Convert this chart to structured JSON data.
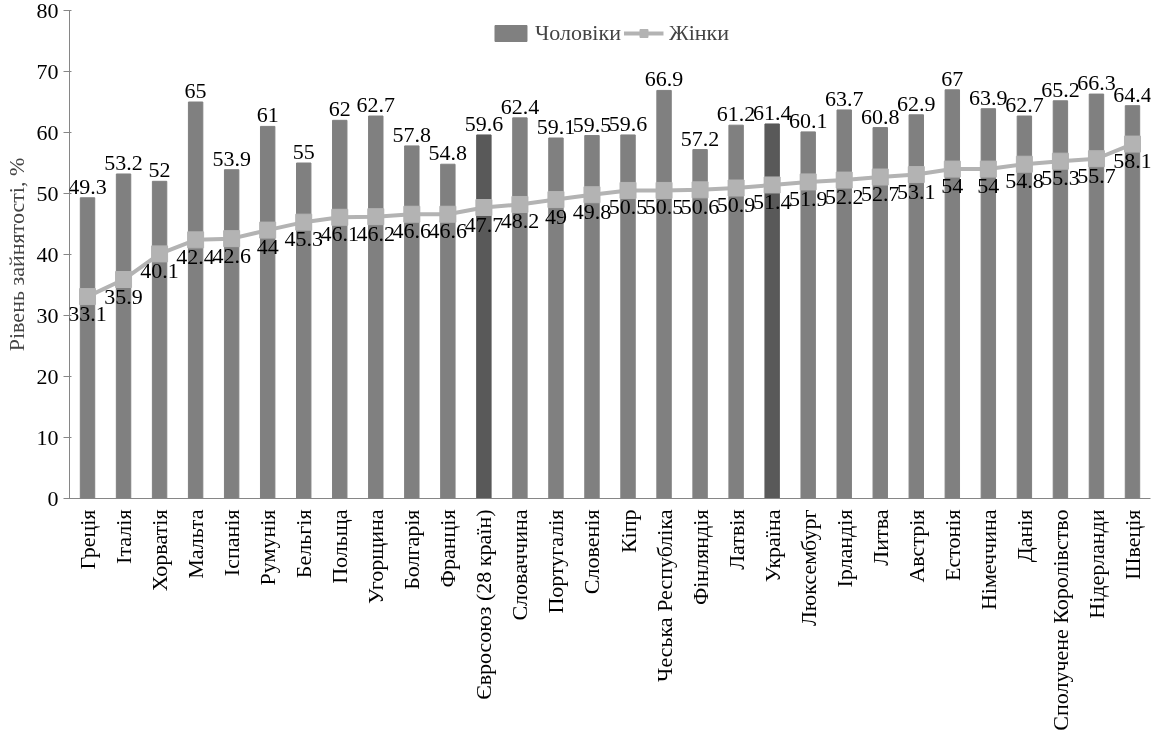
{
  "chart_data": {
    "type": "bar",
    "ylabel": "Рівень зайнятості, %",
    "categories": [
      "Греція",
      "Італія",
      "Хорватія",
      "Мальта",
      "Іспанія",
      "Румунія",
      "Бельгія",
      "Польща",
      "Угорщина",
      "Болгарія",
      "Франція",
      "Євросоюз (28 країн)",
      "Словаччина",
      "Португалія",
      "Словенія",
      "Кіпр",
      "Чеська Республіка",
      "Фінляндія",
      "Латвія",
      "Україна",
      "Люксембург",
      "Ірландія",
      "Литва",
      "Австрія",
      "Естонія",
      "Німеччина",
      "Данія",
      "Сполучене Королівство",
      "Нідерланди",
      "Швеція"
    ],
    "series": [
      {
        "name": "Чоловіки",
        "color": "#808080",
        "colors": [
          "#808080",
          "#808080",
          "#808080",
          "#808080",
          "#808080",
          "#808080",
          "#808080",
          "#808080",
          "#808080",
          "#808080",
          "#808080",
          "#595959",
          "#808080",
          "#808080",
          "#808080",
          "#808080",
          "#808080",
          "#808080",
          "#808080",
          "#595959",
          "#808080",
          "#808080",
          "#808080",
          "#808080",
          "#808080",
          "#808080",
          "#808080",
          "#808080",
          "#808080",
          "#808080"
        ],
        "values": [
          49.3,
          53.2,
          52,
          65,
          53.9,
          61,
          55,
          62,
          62.7,
          57.8,
          54.8,
          59.6,
          62.4,
          59.1,
          59.5,
          59.6,
          66.9,
          57.2,
          61.2,
          61.4,
          60.1,
          63.7,
          60.8,
          62.9,
          67,
          63.9,
          62.7,
          65.2,
          66.3,
          64.4
        ]
      },
      {
        "name": "Жінки",
        "type": "line",
        "color": "#b3b3b3",
        "marker": "square",
        "values": [
          33.1,
          35.9,
          40.1,
          42.4,
          42.6,
          44,
          45.3,
          46.1,
          46.2,
          46.6,
          46.6,
          47.7,
          48.2,
          49,
          49.8,
          50.5,
          50.5,
          50.6,
          50.9,
          51.4,
          51.9,
          52.2,
          52.7,
          53.1,
          54,
          54,
          54.8,
          55.3,
          55.7,
          58.1
        ]
      }
    ],
    "ylim": [
      0,
      80
    ],
    "yticks": [
      0,
      10,
      20,
      30,
      40,
      50,
      60,
      70,
      80
    ],
    "data_labels": true,
    "grid": false,
    "legend": "top"
  }
}
